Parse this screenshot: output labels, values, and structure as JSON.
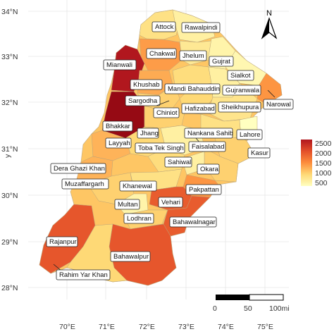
{
  "axis": {
    "ylabel": "y",
    "y_ticks": [
      "34°N",
      "33°N",
      "32°N",
      "31°N",
      "30°N",
      "29°N",
      "28°N"
    ],
    "x_ticks": [
      "70°E",
      "71°E",
      "72°E",
      "73°E",
      "74°E",
      "75°E"
    ]
  },
  "legend": {
    "ticks": [
      "2500",
      "2000",
      "1500",
      "1000",
      "500"
    ],
    "colors": [
      "#ffffc0",
      "#fed976",
      "#fd8d3c",
      "#e3502a",
      "#b1171e"
    ],
    "placement": "right"
  },
  "scalebar": {
    "labels": [
      "0",
      "50",
      "100mi"
    ]
  },
  "north_arrow": {
    "label": "N",
    "icon": "north-arrow-icon"
  },
  "districts": [
    {
      "name": "Attock",
      "value": 900
    },
    {
      "name": "Rawalpindi",
      "value": 700
    },
    {
      "name": "Chakwal",
      "value": 1400
    },
    {
      "name": "Jhelum",
      "value": 800
    },
    {
      "name": "Mianwali",
      "value": 2500
    },
    {
      "name": "Gujrat",
      "value": 650
    },
    {
      "name": "Sialkot",
      "value": 600
    },
    {
      "name": "Khushab",
      "value": 1300
    },
    {
      "name": "Mandi Bahauddin",
      "value": 950
    },
    {
      "name": "Gujranwala",
      "value": 700
    },
    {
      "name": "Sargodha",
      "value": 1050
    },
    {
      "name": "Narowal",
      "value": 1450
    },
    {
      "name": "Chiniot",
      "value": 1050
    },
    {
      "name": "Hafizabad",
      "value": 1000
    },
    {
      "name": "Sheikhupura",
      "value": 850
    },
    {
      "name": "Bhakkar",
      "value": 2800
    },
    {
      "name": "Jhang",
      "value": 1000
    },
    {
      "name": "Nankana Sahib",
      "value": 900
    },
    {
      "name": "Lahore",
      "value": 500
    },
    {
      "name": "Layyah",
      "value": 1250
    },
    {
      "name": "Toba Tek Singh",
      "value": 950
    },
    {
      "name": "Faisalabad",
      "value": 700
    },
    {
      "name": "Kasur",
      "value": 1050
    },
    {
      "name": "Sahiwal",
      "value": 700
    },
    {
      "name": "Dera Ghazi Khan",
      "value": 1250
    },
    {
      "name": "Okara",
      "value": 1050
    },
    {
      "name": "Muzaffargarh",
      "value": 1050
    },
    {
      "name": "Khanewal",
      "value": 900
    },
    {
      "name": "Pakpattan",
      "value": 1450
    },
    {
      "name": "Vehari",
      "value": 1900
    },
    {
      "name": "Multan",
      "value": 650
    },
    {
      "name": "Lodhran",
      "value": 1050
    },
    {
      "name": "Bahawalnagar",
      "value": 1900
    },
    {
      "name": "Rajanpur",
      "value": 1950
    },
    {
      "name": "Bahawalpur",
      "value": 1950
    },
    {
      "name": "Rahim Yar Khan",
      "value": 1000
    }
  ]
}
